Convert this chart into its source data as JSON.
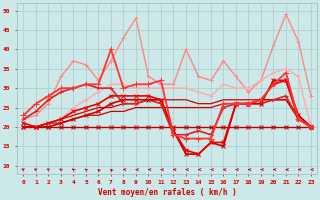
{
  "x": [
    0,
    1,
    2,
    3,
    4,
    5,
    6,
    7,
    8,
    9,
    10,
    11,
    12,
    13,
    14,
    15,
    16,
    17,
    18,
    19,
    20,
    21,
    22,
    23
  ],
  "series": [
    {
      "y": [
        20,
        20,
        20,
        20,
        20,
        20,
        20,
        20,
        20,
        20,
        20,
        20,
        20,
        20,
        20,
        20,
        20,
        20,
        20,
        20,
        20,
        20,
        20,
        20
      ],
      "color": "#bb0000",
      "lw": 1.0,
      "marker": "x",
      "ms": 2.5,
      "zorder": 5
    },
    {
      "y": [
        20,
        20,
        21,
        21,
        22,
        23,
        23,
        24,
        24,
        25,
        25,
        25,
        25,
        25,
        25,
        25,
        26,
        26,
        26,
        27,
        27,
        27,
        23,
        20
      ],
      "color": "#cc0000",
      "lw": 0.9,
      "marker": null,
      "ms": 0,
      "zorder": 4
    },
    {
      "y": [
        20,
        20,
        21,
        22,
        23,
        24,
        25,
        25,
        26,
        26,
        27,
        27,
        27,
        27,
        26,
        26,
        27,
        27,
        27,
        27,
        27,
        27,
        22,
        20
      ],
      "color": "#cc0000",
      "lw": 0.9,
      "marker": null,
      "ms": 0,
      "zorder": 4
    },
    {
      "y": [
        20,
        20,
        20,
        21,
        22,
        23,
        24,
        26,
        27,
        27,
        27,
        27,
        19,
        13,
        13,
        16,
        15,
        26,
        26,
        26,
        32,
        32,
        23,
        20
      ],
      "color": "#cc0000",
      "lw": 1.2,
      "marker": "x",
      "ms": 2.5,
      "zorder": 6
    },
    {
      "y": [
        21,
        20,
        21,
        22,
        24,
        25,
        26,
        28,
        28,
        28,
        28,
        27,
        19,
        14,
        13,
        16,
        16,
        26,
        26,
        27,
        31,
        32,
        22,
        20
      ],
      "color": "#ee0000",
      "lw": 1.2,
      "marker": "x",
      "ms": 2.5,
      "zorder": 6
    },
    {
      "y": [
        22,
        24,
        27,
        29,
        30,
        31,
        30,
        30,
        26,
        26,
        27,
        26,
        18,
        18,
        19,
        18,
        25,
        26,
        26,
        26,
        27,
        28,
        22,
        20
      ],
      "color": "#dd2222",
      "lw": 1.2,
      "marker": "4",
      "ms": 3,
      "zorder": 5
    },
    {
      "y": [
        23,
        26,
        28,
        30,
        30,
        31,
        31,
        40,
        30,
        31,
        31,
        32,
        18,
        17,
        17,
        17,
        26,
        26,
        26,
        27,
        31,
        34,
        22,
        20
      ],
      "color": "#ff3333",
      "lw": 1.3,
      "marker": "+",
      "ms": 4,
      "zorder": 7
    },
    {
      "y": [
        22,
        23,
        26,
        33,
        37,
        36,
        32,
        37,
        43,
        48,
        33,
        31,
        31,
        40,
        33,
        32,
        37,
        33,
        29,
        32,
        41,
        49,
        42,
        28
      ],
      "color": "#ff8888",
      "lw": 1.0,
      "marker": "+",
      "ms": 3,
      "zorder": 3
    },
    {
      "y": [
        20,
        20,
        21,
        22,
        25,
        27,
        29,
        31,
        31,
        30,
        30,
        30,
        30,
        30,
        29,
        28,
        31,
        30,
        30,
        32,
        34,
        35,
        33,
        20
      ],
      "color": "#ffaaaa",
      "lw": 1.0,
      "marker": "+",
      "ms": 3,
      "zorder": 3
    }
  ],
  "xlabel": "Vent moyen/en rafales ( km/h )",
  "xlim": [
    -0.5,
    23.5
  ],
  "ylim": [
    8,
    52
  ],
  "yticks": [
    10,
    15,
    20,
    25,
    30,
    35,
    40,
    45,
    50
  ],
  "xticks": [
    0,
    1,
    2,
    3,
    4,
    5,
    6,
    7,
    8,
    9,
    10,
    11,
    12,
    13,
    14,
    15,
    16,
    17,
    18,
    19,
    20,
    21,
    22,
    23
  ],
  "bg_color": "#cce8e8",
  "grid_color": "#aacccc",
  "tick_color": "#cc0000",
  "label_color": "#cc0000",
  "arrow_color": "#cc0000"
}
